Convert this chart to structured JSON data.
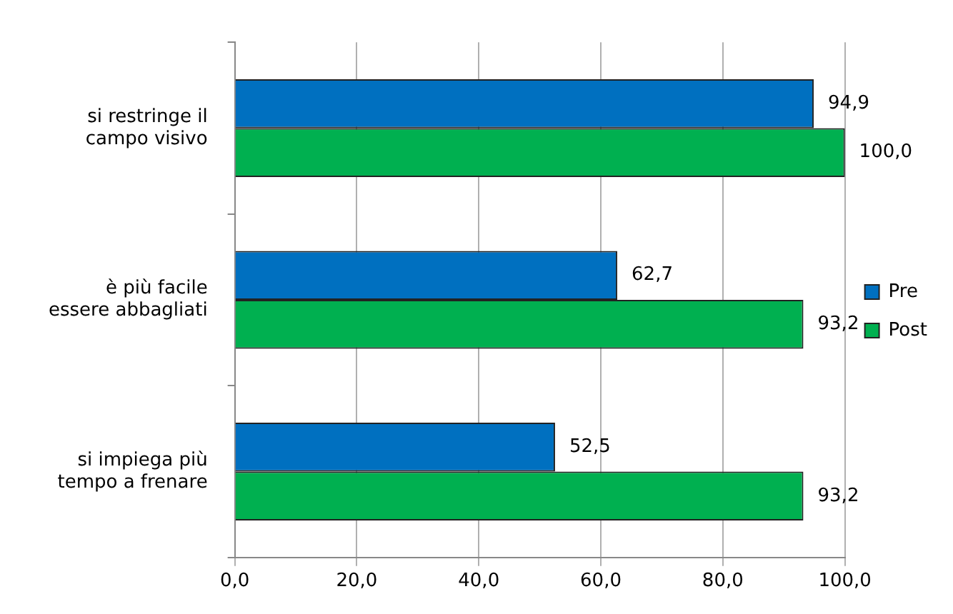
{
  "chart_data": {
    "type": "bar",
    "orientation": "horizontal",
    "categories": [
      "si restringe il campo visivo",
      "è più facile essere abbagliati",
      "si impiega più tempo a frenare"
    ],
    "series": [
      {
        "name": "Pre",
        "color": "#0070c0",
        "values": [
          94.9,
          62.7,
          52.5
        ],
        "value_labels": [
          "94,9",
          "62,7",
          "52,5"
        ]
      },
      {
        "name": "Post",
        "color": "#00b050",
        "values": [
          100.0,
          93.2,
          93.2
        ],
        "value_labels": [
          "100,0",
          "93,2",
          "93,2"
        ]
      }
    ],
    "xlim": [
      0,
      100
    ],
    "xticks": [
      {
        "value": 0,
        "label": "0,0"
      },
      {
        "value": 20,
        "label": "20,0"
      },
      {
        "value": 40,
        "label": "40,0"
      },
      {
        "value": 60,
        "label": "60,0"
      },
      {
        "value": 80,
        "label": "80,0"
      },
      {
        "value": 100,
        "label": "100,0"
      }
    ],
    "grid": "x",
    "legend": "right"
  }
}
